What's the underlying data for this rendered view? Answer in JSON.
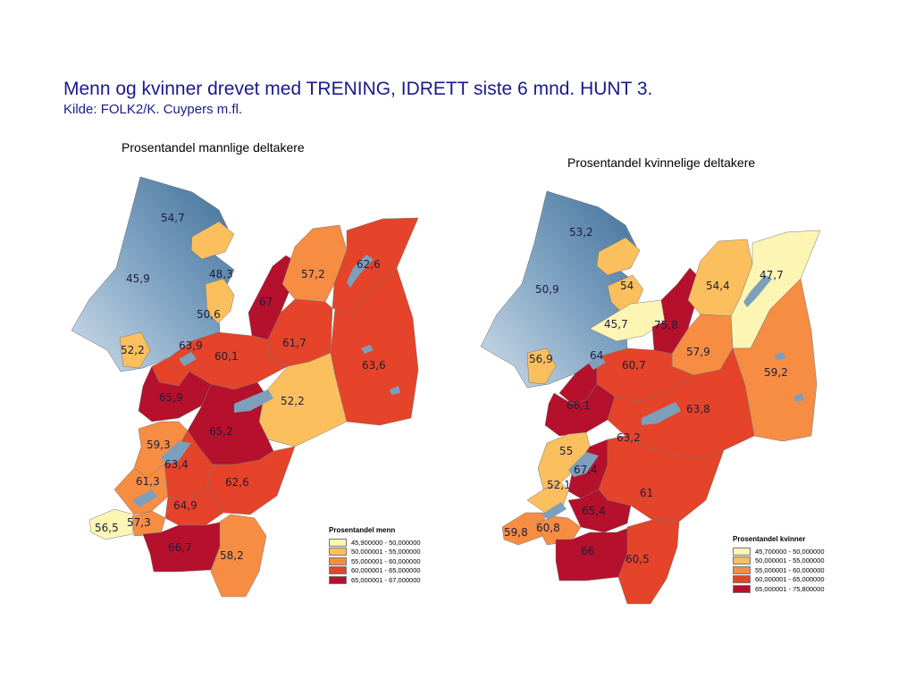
{
  "title": "Menn og kvinner drevet med TRENING, IDRETT siste 6 mnd. HUNT 3.",
  "subtitle": "Kilde: FOLK2/K. Cuypers m.fl.",
  "colors": {
    "c1": "#fdf5b4",
    "c2": "#fbbf5e",
    "c3": "#f68d43",
    "c4": "#e5432a",
    "c5": "#b5102c",
    "sea_dark": "#4f7ea8",
    "sea_light": "#b9cfe0",
    "lake": "#7d9fbb"
  },
  "men_map": {
    "title": "Prosentandel mannlige deltakere",
    "values": [
      "54,7",
      "45,9",
      "48,3",
      "50,6",
      "67",
      "57,2",
      "62,6",
      "52,2",
      "63,9",
      "60,1",
      "61,7",
      "63,6",
      "65,9",
      "52,2",
      "65,2",
      "59,3",
      "63,4",
      "61,3",
      "62,6",
      "64,9",
      "56,5",
      "57,3",
      "66,7",
      "58,2"
    ],
    "legend": {
      "title": "Prosentandel menn",
      "items": [
        "45,900000 - 50,000000",
        "50,000001 - 55,000000",
        "55,000001 - 60,000000",
        "60,000001 - 65,000000",
        "65,000001 - 67,000000"
      ]
    }
  },
  "women_map": {
    "title": "Prosentandel kvinnelige deltakere",
    "values": [
      "53,2",
      "50,9",
      "54",
      "54,4",
      "47,7",
      "45,7",
      "75,8",
      "56,9",
      "64",
      "60,7",
      "57,9",
      "59,2",
      "66,1",
      "63,8",
      "63,2",
      "55",
      "67,4",
      "52,1",
      "61",
      "65,4",
      "59,8",
      "60,8",
      "66",
      "60,5"
    ],
    "legend": {
      "title": "Prosentandel kvinner",
      "items": [
        "45,700000 - 50,000000",
        "50,000001 - 55,000000",
        "55,000001 - 60,000000",
        "60,000001 - 65,000000",
        "65,000001 - 75,800000"
      ]
    }
  }
}
